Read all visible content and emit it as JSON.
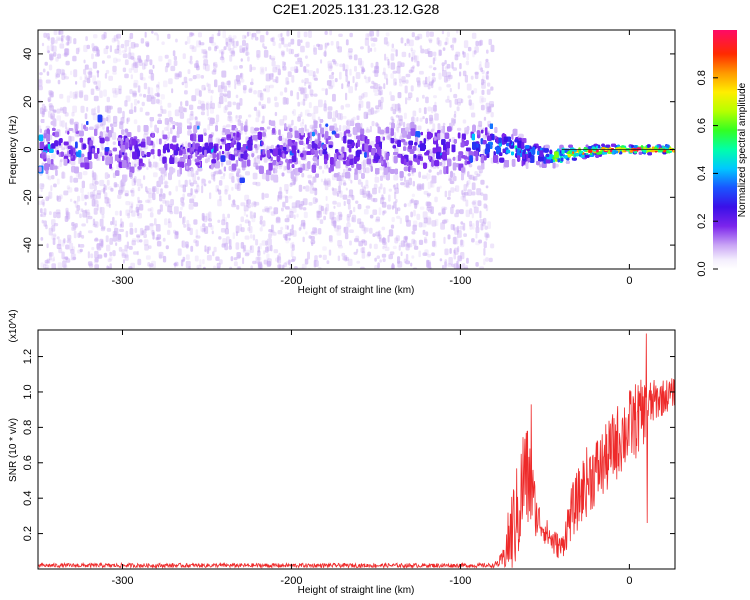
{
  "title": "C2E1.2025.131.23.12.G28",
  "colors": {
    "spectrogram_sparse": "#c7a8f2",
    "spectrogram_core": "#6a16e8",
    "snr_line": "#ee2a2a"
  },
  "chart_data": [
    {
      "type": "heatmap",
      "title": "C2E1.2025.131.23.12.G28",
      "xlabel": "Height of straight line (km)",
      "ylabel": "Frequency (Hz)",
      "xlim": [
        -350,
        27
      ],
      "ylim": [
        -50,
        50
      ],
      "x_ticks": [
        -300,
        -200,
        -100,
        0
      ],
      "y_ticks": [
        -40,
        -20,
        0,
        20,
        40
      ],
      "colorbar": {
        "label": "Normalized spectral amplitude",
        "range": [
          0,
          1
        ],
        "ticks": [
          "0.0",
          "0.2",
          "0.4",
          "0.6",
          "0.8"
        ],
        "colormap": "rainbow"
      },
      "ridge": [
        {
          "x": -350,
          "freq": 0,
          "amplitude": 0.2,
          "spread": 8
        },
        {
          "x": -300,
          "freq": 0,
          "amplitude": 0.2,
          "spread": 8
        },
        {
          "x": -200,
          "freq": 0,
          "amplitude": 0.2,
          "spread": 8
        },
        {
          "x": -100,
          "freq": 0,
          "amplitude": 0.22,
          "spread": 8
        },
        {
          "x": -85,
          "freq": 2,
          "amplitude": 0.3,
          "spread": 5
        },
        {
          "x": -70,
          "freq": 0,
          "amplitude": 0.45,
          "spread": 4
        },
        {
          "x": -55,
          "freq": -2,
          "amplitude": 0.3,
          "spread": 3
        },
        {
          "x": -45,
          "freq": -3,
          "amplitude": 0.55,
          "spread": 2
        },
        {
          "x": -30,
          "freq": -1,
          "amplitude": 0.8,
          "spread": 1.5
        },
        {
          "x": -10,
          "freq": 0,
          "amplitude": 0.9,
          "spread": 1
        },
        {
          "x": 10,
          "freq": 0,
          "amplitude": 0.95,
          "spread": 1
        },
        {
          "x": 27,
          "freq": 0,
          "amplitude": 0.95,
          "spread": 1
        }
      ],
      "sparse_noise_range": [
        -350,
        -82
      ]
    },
    {
      "type": "line",
      "xlabel": "Height of straight line (km)",
      "ylabel": "SNR (10 * v/v)",
      "y_multiplier": "(x10^4)",
      "xlim": [
        -350,
        27
      ],
      "ylim": [
        0,
        1.35
      ],
      "x_ticks": [
        -300,
        -200,
        -100,
        0
      ],
      "y_ticks": [
        "0.2",
        "0.4",
        "0.6",
        "0.8",
        "1.0",
        "1.2"
      ],
      "series": [
        {
          "values_in": "x10^4",
          "envelope": [
            {
              "x": -350,
              "mean": 0.02,
              "noise": 0.012
            },
            {
              "x": -80,
              "mean": 0.02,
              "noise": 0.012
            },
            {
              "x": -75,
              "mean": 0.05,
              "noise": 0.05
            },
            {
              "x": -70,
              "mean": 0.2,
              "noise": 0.25
            },
            {
              "x": -65,
              "mean": 0.35,
              "noise": 0.3
            },
            {
              "x": -62,
              "mean": 0.55,
              "noise": 0.35
            },
            {
              "x": -58,
              "mean": 0.45,
              "noise": 0.25
            },
            {
              "x": -55,
              "mean": 0.3,
              "noise": 0.12
            },
            {
              "x": -50,
              "mean": 0.22,
              "noise": 0.08
            },
            {
              "x": -45,
              "mean": 0.15,
              "noise": 0.08
            },
            {
              "x": -40,
              "mean": 0.12,
              "noise": 0.07
            },
            {
              "x": -35,
              "mean": 0.3,
              "noise": 0.15
            },
            {
              "x": -25,
              "mean": 0.5,
              "noise": 0.2
            },
            {
              "x": -15,
              "mean": 0.6,
              "noise": 0.2
            },
            {
              "x": -5,
              "mean": 0.75,
              "noise": 0.22
            },
            {
              "x": 5,
              "mean": 0.85,
              "noise": 0.22
            },
            {
              "x": 15,
              "mean": 0.95,
              "noise": 0.12
            },
            {
              "x": 27,
              "mean": 1.0,
              "noise": 0.08
            }
          ],
          "spikes": [
            {
              "x": -58,
              "value": 0.93
            },
            {
              "x": 10,
              "value": 1.33
            },
            {
              "x": 10.6,
              "value": 0.26
            }
          ]
        }
      ]
    }
  ]
}
